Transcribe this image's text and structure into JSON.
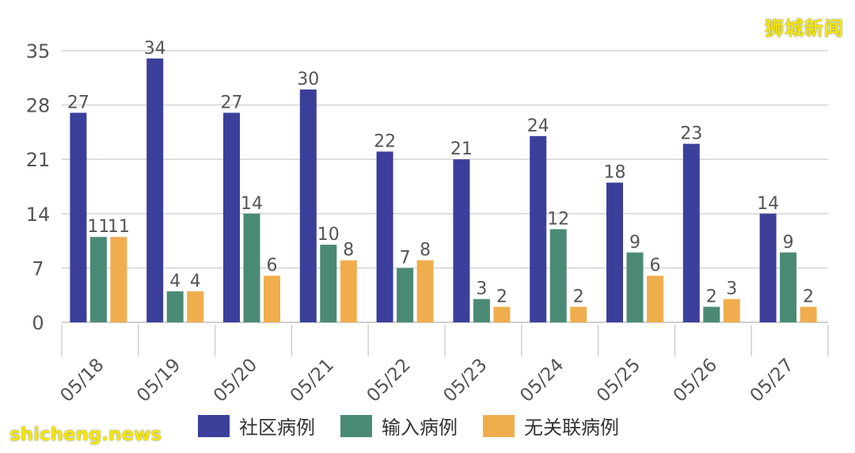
{
  "watermark_top": "狮城新闻",
  "watermark_bottom": "shicheng.news",
  "chart_data": {
    "type": "bar",
    "categories": [
      "05/18",
      "05/19",
      "05/20",
      "05/21",
      "05/22",
      "05/23",
      "05/24",
      "05/25",
      "05/26",
      "05/27"
    ],
    "series": [
      {
        "name": "社区病例",
        "color": "#3b3f9a",
        "values": [
          27,
          34,
          27,
          30,
          22,
          21,
          24,
          18,
          23,
          14
        ]
      },
      {
        "name": "输入病例",
        "color": "#4a8a74",
        "values": [
          11,
          4,
          14,
          10,
          7,
          3,
          12,
          9,
          2,
          9
        ]
      },
      {
        "name": "无关联病例",
        "color": "#f0ad4e",
        "values": [
          11,
          4,
          6,
          8,
          8,
          2,
          2,
          6,
          3,
          2
        ]
      }
    ],
    "y_ticks": [
      0,
      7,
      14,
      21,
      28,
      35
    ],
    "ylim": [
      0,
      35
    ],
    "grid": true,
    "legend_position": "bottom",
    "title": "",
    "xlabel": "",
    "ylabel": ""
  }
}
